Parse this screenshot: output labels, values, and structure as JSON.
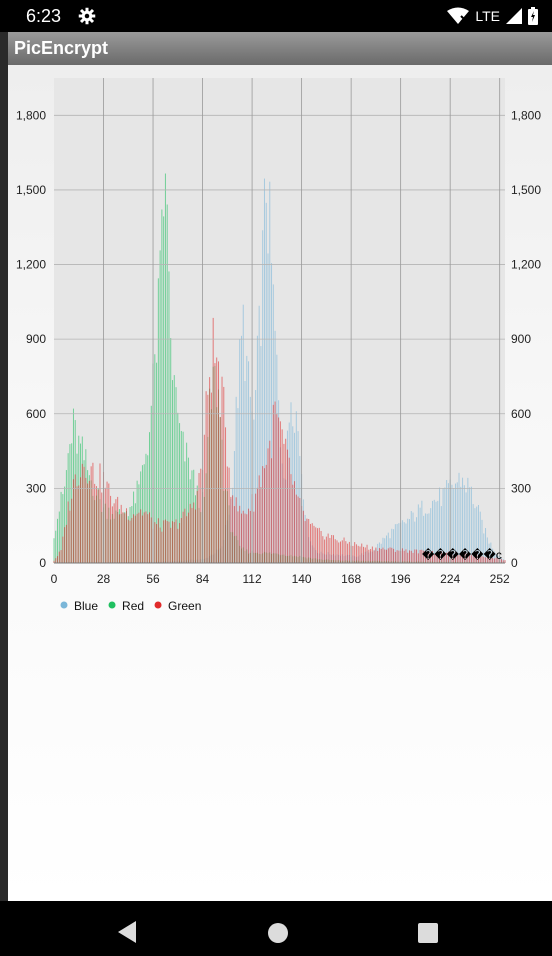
{
  "status_bar": {
    "time": "6:23",
    "network": "LTE",
    "icons": [
      "gear-icon",
      "wifi-icon",
      "signal-icon",
      "battery-icon"
    ]
  },
  "app": {
    "title": "PicEncrypt"
  },
  "nav": {
    "icons": [
      "back-icon",
      "home-icon",
      "recents-icon"
    ]
  },
  "chart_data": {
    "type": "bar",
    "title": "",
    "xlabel": "",
    "ylabel": "",
    "xlim": [
      0,
      255
    ],
    "ylim": [
      0,
      1950
    ],
    "x_ticks": [
      0,
      28,
      56,
      84,
      112,
      140,
      168,
      196,
      224,
      252
    ],
    "x_tick_labels": [
      "0",
      "28",
      "56",
      "84",
      "112",
      "140",
      "168",
      "196",
      "224",
      "252"
    ],
    "y_ticks": [
      0,
      300,
      600,
      900,
      1200,
      1500,
      1800
    ],
    "y_tick_labels": [
      "0",
      "300",
      "600",
      "900",
      "1,200",
      "1,500",
      "1,800"
    ],
    "right_axis_tick_labels": [
      "0",
      "300",
      "600",
      "900",
      "1,200",
      "1,500",
      "1,800"
    ],
    "grid": true,
    "legend_position": "bottom-left",
    "annotation": "������c",
    "series": [
      {
        "name": "Blue",
        "color": "#7ab6d8",
        "keypoints": [
          [
            0,
            0
          ],
          [
            60,
            5
          ],
          [
            85,
            15
          ],
          [
            95,
            60
          ],
          [
            100,
            250
          ],
          [
            104,
            700
          ],
          [
            107,
            950
          ],
          [
            110,
            700
          ],
          [
            113,
            550
          ],
          [
            116,
            900
          ],
          [
            119,
            1350
          ],
          [
            120,
            1550
          ],
          [
            122,
            1300
          ],
          [
            125,
            900
          ],
          [
            128,
            500
          ],
          [
            131,
            350
          ],
          [
            134,
            700
          ],
          [
            137,
            600
          ],
          [
            140,
            380
          ],
          [
            143,
            150
          ],
          [
            146,
            70
          ],
          [
            150,
            40
          ],
          [
            160,
            35
          ],
          [
            170,
            25
          ],
          [
            180,
            50
          ],
          [
            190,
            120
          ],
          [
            200,
            170
          ],
          [
            210,
            230
          ],
          [
            220,
            270
          ],
          [
            230,
            340
          ],
          [
            235,
            300
          ],
          [
            240,
            200
          ],
          [
            245,
            100
          ],
          [
            250,
            40
          ],
          [
            255,
            10
          ]
        ]
      },
      {
        "name": "Red",
        "color": "#20c060",
        "keypoints": [
          [
            0,
            120
          ],
          [
            3,
            220
          ],
          [
            6,
            300
          ],
          [
            8,
            430
          ],
          [
            11,
            540
          ],
          [
            14,
            470
          ],
          [
            17,
            420
          ],
          [
            20,
            350
          ],
          [
            24,
            280
          ],
          [
            28,
            220
          ],
          [
            32,
            210
          ],
          [
            36,
            190
          ],
          [
            40,
            210
          ],
          [
            44,
            230
          ],
          [
            48,
            300
          ],
          [
            52,
            450
          ],
          [
            55,
            600
          ],
          [
            58,
            900
          ],
          [
            60,
            1100
          ],
          [
            62,
            1400
          ],
          [
            63,
            1700
          ],
          [
            64,
            1300
          ],
          [
            66,
            900
          ],
          [
            68,
            700
          ],
          [
            70,
            580
          ],
          [
            72,
            480
          ],
          [
            75,
            420
          ],
          [
            78,
            360
          ],
          [
            80,
            300
          ],
          [
            82,
            250
          ],
          [
            85,
            240
          ],
          [
            88,
            600
          ],
          [
            90,
            720
          ],
          [
            92,
            720
          ],
          [
            94,
            600
          ],
          [
            96,
            350
          ],
          [
            100,
            150
          ],
          [
            105,
            60
          ],
          [
            110,
            45
          ],
          [
            120,
            40
          ],
          [
            130,
            35
          ],
          [
            140,
            25
          ],
          [
            150,
            15
          ],
          [
            160,
            10
          ],
          [
            180,
            8
          ],
          [
            200,
            6
          ],
          [
            230,
            4
          ],
          [
            255,
            2
          ]
        ]
      },
      {
        "name": "Green",
        "color": "#e02a2a",
        "keypoints": [
          [
            0,
            10
          ],
          [
            4,
            50
          ],
          [
            8,
            220
          ],
          [
            12,
            340
          ],
          [
            16,
            400
          ],
          [
            20,
            380
          ],
          [
            24,
            350
          ],
          [
            28,
            330
          ],
          [
            32,
            270
          ],
          [
            36,
            230
          ],
          [
            40,
            210
          ],
          [
            44,
            200
          ],
          [
            48,
            210
          ],
          [
            52,
            200
          ],
          [
            56,
            160
          ],
          [
            60,
            150
          ],
          [
            64,
            150
          ],
          [
            68,
            150
          ],
          [
            72,
            180
          ],
          [
            76,
            200
          ],
          [
            80,
            260
          ],
          [
            84,
            400
          ],
          [
            86,
            600
          ],
          [
            88,
            760
          ],
          [
            90,
            860
          ],
          [
            92,
            800
          ],
          [
            94,
            700
          ],
          [
            96,
            600
          ],
          [
            98,
            450
          ],
          [
            100,
            320
          ],
          [
            103,
            230
          ],
          [
            106,
            200
          ],
          [
            110,
            220
          ],
          [
            113,
            250
          ],
          [
            116,
            330
          ],
          [
            119,
            400
          ],
          [
            122,
            460
          ],
          [
            125,
            600
          ],
          [
            128,
            520
          ],
          [
            131,
            430
          ],
          [
            135,
            330
          ],
          [
            138,
            240
          ],
          [
            142,
            180
          ],
          [
            146,
            140
          ],
          [
            150,
            120
          ],
          [
            155,
            110
          ],
          [
            160,
            95
          ],
          [
            165,
            85
          ],
          [
            170,
            75
          ],
          [
            180,
            60
          ],
          [
            190,
            55
          ],
          [
            200,
            50
          ],
          [
            210,
            45
          ],
          [
            220,
            40
          ],
          [
            230,
            35
          ],
          [
            240,
            30
          ],
          [
            250,
            20
          ],
          [
            255,
            10
          ]
        ]
      }
    ]
  }
}
